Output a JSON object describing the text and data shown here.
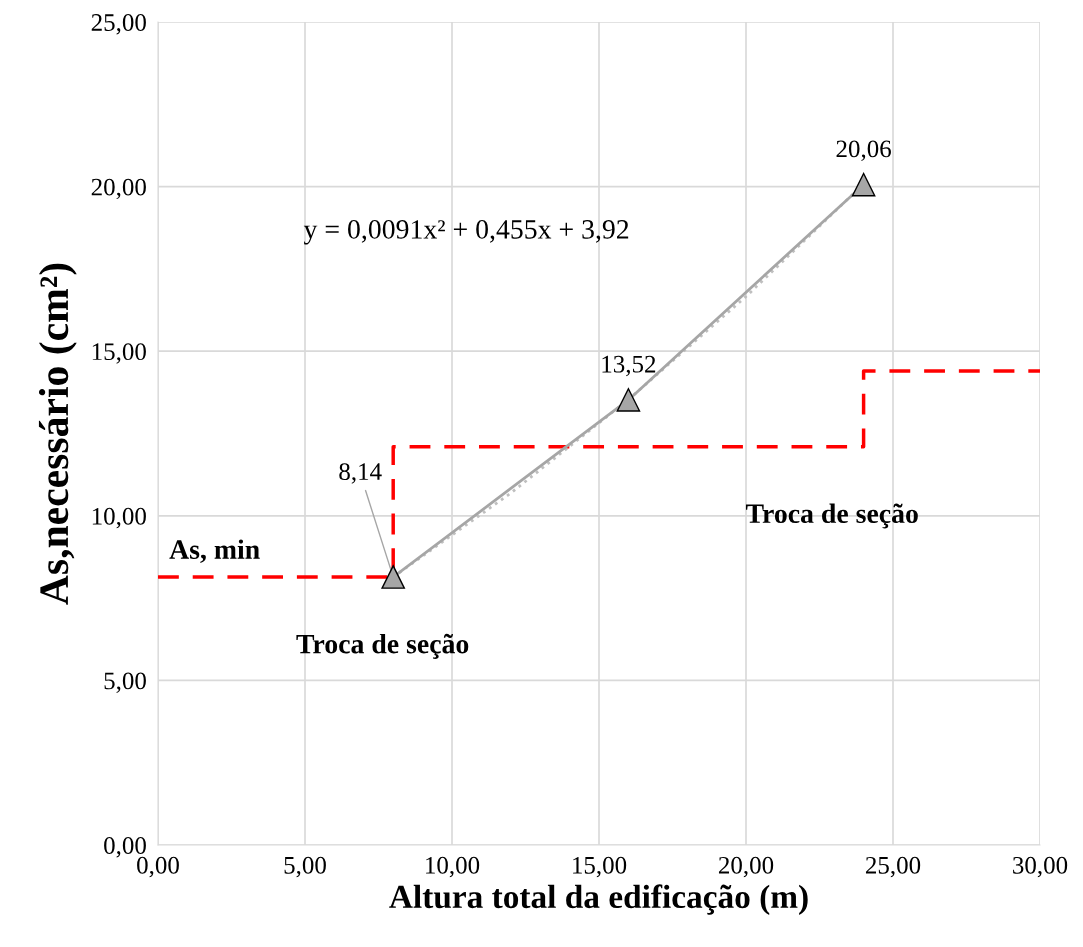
{
  "chart_data": {
    "type": "line",
    "xlabel": "Altura total da edificação (m)",
    "ylabel": "As,necessário (cm²)",
    "xlim": [
      0,
      30
    ],
    "ylim": [
      0,
      25
    ],
    "xticks": [
      {
        "value": 0,
        "label": "0,00"
      },
      {
        "value": 5,
        "label": "5,00"
      },
      {
        "value": 10,
        "label": "10,00"
      },
      {
        "value": 15,
        "label": "15,00"
      },
      {
        "value": 20,
        "label": "20,00"
      },
      {
        "value": 25,
        "label": "25,00"
      },
      {
        "value": 30,
        "label": "30,00"
      }
    ],
    "yticks": [
      {
        "value": 0,
        "label": "0,00"
      },
      {
        "value": 5,
        "label": "5,00"
      },
      {
        "value": 10,
        "label": "10,00"
      },
      {
        "value": 15,
        "label": "15,00"
      },
      {
        "value": 20,
        "label": "20,00"
      },
      {
        "value": 25,
        "label": "25,00"
      }
    ],
    "grid": true,
    "legend": false,
    "series": [
      {
        "type": "step",
        "color": "#ff0000",
        "line_style": "dashed",
        "marker": "none",
        "x": [
          0,
          8,
          24,
          30
        ],
        "values": [
          8.14,
          12.1,
          14.4,
          14.4
        ]
      },
      {
        "type": "line",
        "color": "#bfbfbf",
        "line_style": "dotted",
        "marker": "none",
        "x": [
          8,
          12,
          16,
          20,
          24
        ],
        "values": [
          8.14,
          10.69,
          13.53,
          16.66,
          20.08
        ]
      },
      {
        "color": "#a6a6a6",
        "line_style": "solid",
        "marker": "triangle",
        "x": [
          8,
          16,
          24
        ],
        "values": [
          8.14,
          13.52,
          20.06
        ],
        "value_labels": [
          "8,14",
          "13,52",
          "20,06"
        ]
      }
    ],
    "annotations": [
      "y = 0,0091x² + 0,455x + 3,92",
      {
        "text": "As, min",
        "x": 0,
        "y": 8.14
      },
      {
        "text": "Troca de seção",
        "x": 8,
        "y": 8.14
      },
      {
        "text": "Troca de seção",
        "x": 24,
        "y": 12.1
      }
    ]
  }
}
